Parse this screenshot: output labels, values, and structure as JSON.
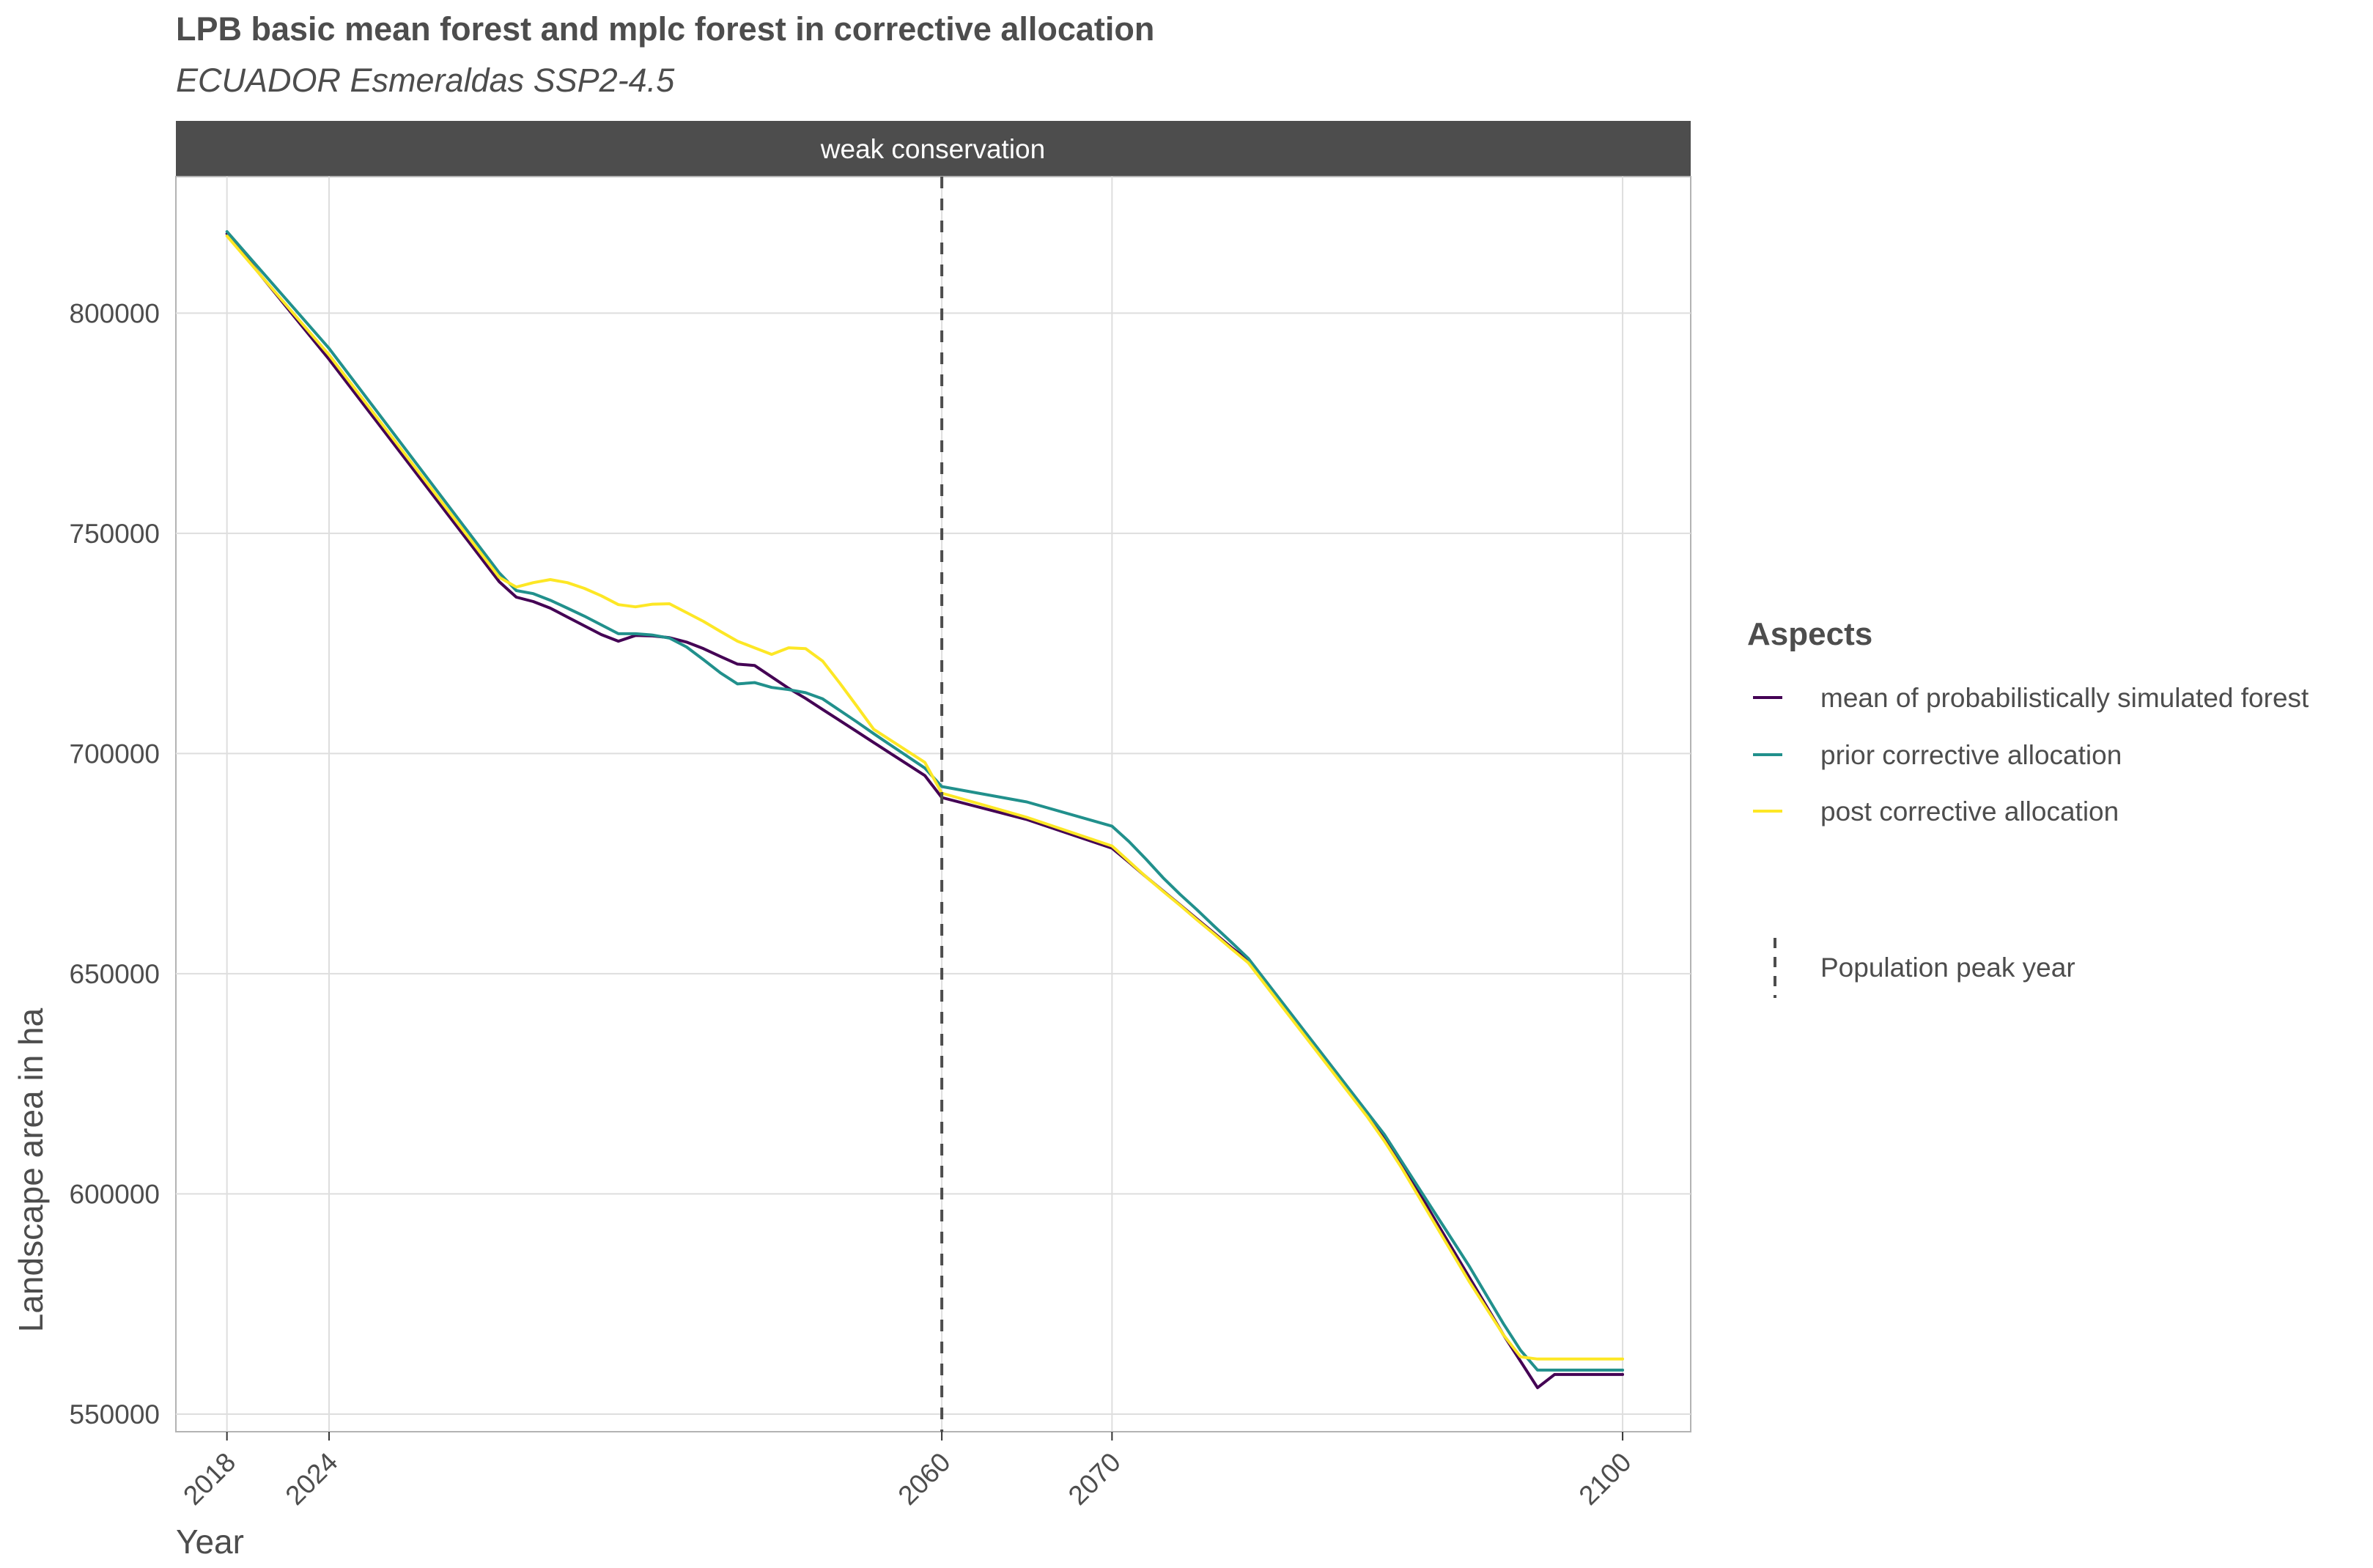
{
  "chart_data": {
    "type": "line",
    "title": "LPB basic mean forest and mplc forest in corrective allocation",
    "subtitle": "ECUADOR Esmeraldas SSP2-4.5",
    "facet_label": "weak conservation",
    "xlabel": "Year",
    "ylabel": "Landscape area in ha",
    "xlim": [
      2015,
      2104
    ],
    "ylim": [
      546000,
      831000
    ],
    "x_ticks": [
      2018,
      2024,
      2060,
      2070,
      2100
    ],
    "y_ticks": [
      550000,
      600000,
      650000,
      700000,
      750000,
      800000
    ],
    "grid": true,
    "legend_position": "right",
    "legend_title": "Aspects",
    "reference_line": {
      "x": 2060,
      "label": "Population peak year",
      "style": "dashed"
    },
    "x": [
      2018,
      2024,
      2034,
      2035,
      2036,
      2037,
      2038,
      2039,
      2040,
      2041,
      2042,
      2043,
      2044,
      2045,
      2046,
      2047,
      2048,
      2049,
      2050,
      2051,
      2052,
      2053,
      2054,
      2055,
      2056,
      2057,
      2058,
      2059,
      2060,
      2065,
      2070,
      2071,
      2072,
      2073,
      2074,
      2075,
      2076,
      2077,
      2078,
      2079,
      2080,
      2081,
      2082,
      2083,
      2084,
      2085,
      2086,
      2087,
      2088,
      2089,
      2090,
      2091,
      2092,
      2093,
      2094,
      2095,
      2096,
      2097,
      2098,
      2099,
      2100
    ],
    "series": [
      {
        "name": "mean of probabilistically simulated forest",
        "color": "#440154",
        "values": [
          818000,
          789500,
          739000,
          735500,
          734500,
          733000,
          731000,
          729000,
          727000,
          725500,
          726800,
          726700,
          726300,
          725300,
          723800,
          722000,
          720300,
          720000,
          717400,
          714800,
          712500,
          710000,
          707500,
          705000,
          702500,
          700000,
          697500,
          695000,
          690000,
          685000,
          678500,
          675300,
          672000,
          668800,
          665600,
          662400,
          659200,
          656000,
          653000,
          648000,
          643000,
          638000,
          633000,
          628000,
          623000,
          618000,
          613000,
          607000,
          600500,
          594000,
          587500,
          581000,
          574500,
          568000,
          562000,
          556000,
          559000,
          559000,
          559000,
          559000,
          559000
        ]
      },
      {
        "name": "prior corrective allocation",
        "color": "#21908C",
        "values": [
          818500,
          792000,
          741000,
          737000,
          736300,
          734800,
          733000,
          731200,
          729200,
          727200,
          727200,
          726900,
          726200,
          724200,
          721300,
          718300,
          715800,
          716100,
          715000,
          714500,
          713800,
          712400,
          709800,
          707200,
          704500,
          701900,
          699300,
          696700,
          692500,
          689000,
          683500,
          680000,
          676000,
          671800,
          668000,
          664500,
          660800,
          657200,
          653500,
          648500,
          643500,
          638500,
          633500,
          628500,
          623500,
          618500,
          613500,
          607500,
          601500,
          595500,
          589500,
          583500,
          577000,
          570500,
          564500,
          560000,
          560000,
          560000,
          560000,
          560000,
          560000
        ]
      },
      {
        "name": "post corrective allocation",
        "color": "#FDE725",
        "values": [
          817500,
          790500,
          740000,
          737800,
          738800,
          739500,
          738800,
          737500,
          735800,
          733800,
          733300,
          733900,
          734000,
          732000,
          730000,
          727700,
          725500,
          724000,
          722500,
          724000,
          723800,
          721000,
          716000,
          710800,
          705500,
          703000,
          700500,
          698000,
          691000,
          685500,
          679000,
          675500,
          672000,
          668700,
          665500,
          662200,
          659000,
          655700,
          652500,
          647500,
          642500,
          637500,
          632500,
          627500,
          622500,
          617500,
          612000,
          606000,
          599500,
          593000,
          586500,
          580000,
          574000,
          568000,
          563000,
          562500,
          562500,
          562500,
          562500,
          562500,
          562500
        ]
      }
    ]
  }
}
